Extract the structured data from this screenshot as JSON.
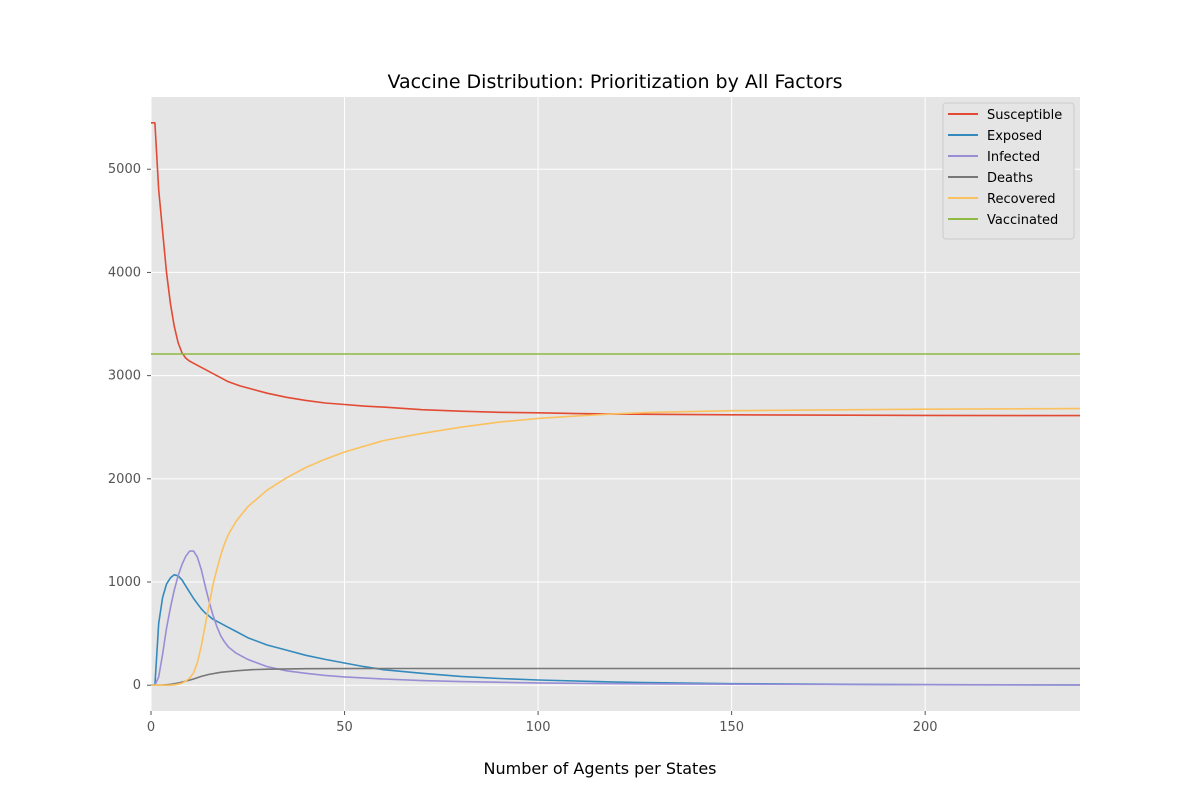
{
  "chart_data": {
    "type": "line",
    "title": "Vaccine Distribution: Prioritization by All Factors",
    "xlabel": "Number of Agents per States",
    "ylabel": "",
    "xlim": [
      0,
      240
    ],
    "ylim": [
      -250,
      5700
    ],
    "xticks": [
      0,
      50,
      100,
      150,
      200
    ],
    "yticks": [
      0,
      1000,
      2000,
      3000,
      4000,
      5000
    ],
    "grid": true,
    "legend_position": "top-right",
    "background_color": "#e5e5e5",
    "grid_color": "#ffffff",
    "series": [
      {
        "name": "Susceptible",
        "color": "#e24a33",
        "x": [
          0,
          1,
          2,
          3,
          4,
          5,
          6,
          7,
          8,
          9,
          10,
          12,
          14,
          16,
          18,
          20,
          23,
          26,
          30,
          35,
          40,
          45,
          50,
          55,
          60,
          70,
          80,
          90,
          100,
          110,
          120,
          130,
          150,
          200,
          240
        ],
        "y": [
          5450,
          5450,
          4800,
          4400,
          4000,
          3700,
          3480,
          3320,
          3220,
          3170,
          3140,
          3100,
          3060,
          3020,
          2980,
          2940,
          2900,
          2870,
          2830,
          2790,
          2760,
          2735,
          2720,
          2705,
          2695,
          2670,
          2655,
          2645,
          2640,
          2632,
          2627,
          2625,
          2620,
          2615,
          2613
        ]
      },
      {
        "name": "Exposed",
        "color": "#348abd",
        "x": [
          0,
          1,
          2,
          3,
          4,
          5,
          6,
          7,
          8,
          9,
          10,
          11,
          12,
          13,
          14,
          15,
          16,
          18,
          20,
          22,
          25,
          30,
          35,
          40,
          45,
          50,
          55,
          60,
          70,
          80,
          90,
          100,
          120,
          150,
          200,
          240
        ],
        "y": [
          0,
          0,
          600,
          850,
          980,
          1040,
          1070,
          1060,
          1020,
          960,
          900,
          840,
          790,
          740,
          700,
          670,
          640,
          600,
          560,
          520,
          460,
          390,
          340,
          290,
          250,
          215,
          180,
          150,
          115,
          85,
          65,
          50,
          30,
          15,
          5,
          2
        ]
      },
      {
        "name": "Infected",
        "color": "#988ed5",
        "x": [
          0,
          1,
          2,
          3,
          4,
          5,
          6,
          7,
          8,
          9,
          10,
          11,
          12,
          13,
          14,
          15,
          16,
          17,
          18,
          19,
          20,
          22,
          25,
          30,
          35,
          40,
          45,
          50,
          60,
          70,
          80,
          100,
          120,
          150,
          200,
          240
        ],
        "y": [
          0,
          0,
          80,
          300,
          550,
          750,
          920,
          1060,
          1170,
          1250,
          1300,
          1300,
          1240,
          1120,
          960,
          810,
          680,
          570,
          480,
          420,
          370,
          310,
          250,
          180,
          140,
          115,
          95,
          80,
          60,
          45,
          35,
          22,
          15,
          10,
          5,
          3
        ]
      },
      {
        "name": "Deaths",
        "color": "#777777",
        "x": [
          0,
          3,
          5,
          7,
          9,
          11,
          13,
          15,
          18,
          22,
          26,
          30,
          35,
          40,
          50,
          60,
          240
        ],
        "y": [
          0,
          2,
          8,
          20,
          40,
          60,
          85,
          105,
          125,
          140,
          150,
          155,
          158,
          160,
          161,
          162,
          162
        ]
      },
      {
        "name": "Recovered",
        "color": "#fbc15e",
        "x": [
          0,
          5,
          7,
          8,
          9,
          10,
          11,
          12,
          13,
          14,
          15,
          16,
          17,
          18,
          19,
          20,
          22,
          25,
          30,
          35,
          40,
          45,
          50,
          60,
          70,
          80,
          90,
          100,
          110,
          120,
          130,
          150,
          200,
          240
        ],
        "y": [
          0,
          0,
          10,
          20,
          40,
          70,
          120,
          220,
          380,
          580,
          780,
          970,
          1120,
          1260,
          1370,
          1460,
          1590,
          1730,
          1890,
          2010,
          2110,
          2190,
          2260,
          2370,
          2440,
          2500,
          2550,
          2585,
          2610,
          2630,
          2645,
          2660,
          2675,
          2680
        ]
      },
      {
        "name": "Vaccinated",
        "color": "#8eba42",
        "x": [
          0,
          240
        ],
        "y": [
          3210,
          3210
        ]
      }
    ]
  }
}
